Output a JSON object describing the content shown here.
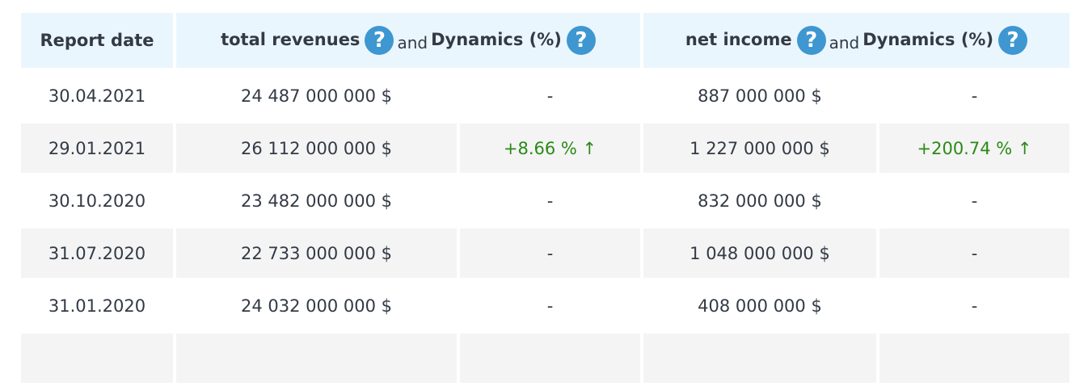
{
  "header": {
    "report_date": "Report date",
    "revenues": "total revenues",
    "and": "and",
    "dynamics": "Dynamics (%)",
    "net_income": "net income",
    "help_icon": "?"
  },
  "colors": {
    "header_bg": "#eaf6fd",
    "alt_row_bg": "#f4f4f4",
    "positive": "#2a8a16",
    "help_icon": "#3e97d0"
  },
  "rows": [
    {
      "date": "30.04.2021",
      "revenue": "24 487 000 000 $",
      "rev_dyn": "-",
      "income": "887 000 000 $",
      "inc_dyn": "-"
    },
    {
      "date": "29.01.2021",
      "revenue": "26 112 000 000 $",
      "rev_dyn": "+8.66 % ↑",
      "income": "1 227 000 000 $",
      "inc_dyn": "+200.74 % ↑"
    },
    {
      "date": "30.10.2020",
      "revenue": "23 482 000 000 $",
      "rev_dyn": "-",
      "income": "832 000 000 $",
      "inc_dyn": "-"
    },
    {
      "date": "31.07.2020",
      "revenue": "22 733 000 000 $",
      "rev_dyn": "-",
      "income": "1 048 000 000 $",
      "inc_dyn": "-"
    },
    {
      "date": "31.01.2020",
      "revenue": "24 032 000 000 $",
      "rev_dyn": "-",
      "income": "408 000 000 $",
      "inc_dyn": "-"
    }
  ]
}
